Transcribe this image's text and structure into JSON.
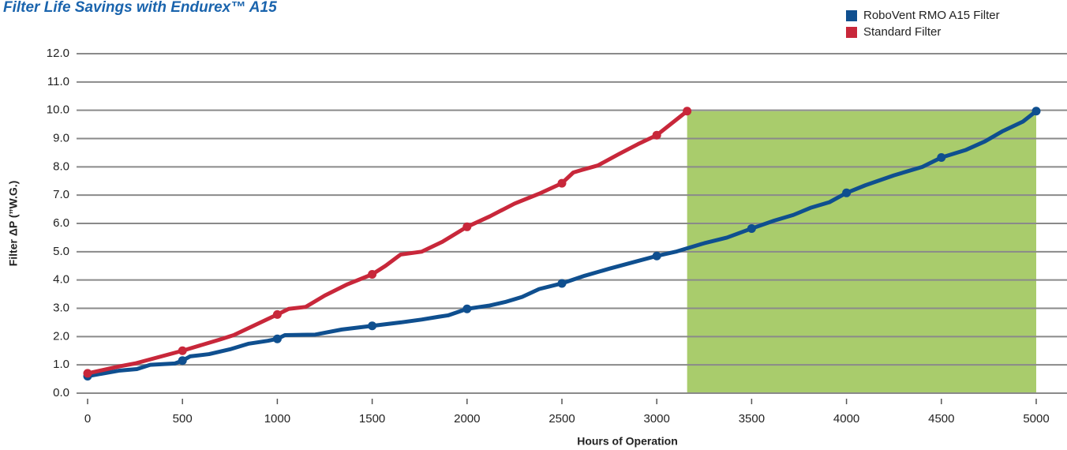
{
  "chart_data": {
    "type": "line",
    "title": "Filter Life Savings with Endurex™ A15",
    "x_label": "Hours of Operation",
    "y_label": "Filter ΔP (”W.G.)",
    "xlim": [
      0,
      5000
    ],
    "xticks": [
      0,
      500,
      1000,
      1500,
      2000,
      2500,
      3000,
      3500,
      4000,
      4500,
      5000
    ],
    "ylim": [
      0,
      12
    ],
    "yticks": [
      {
        "value": 0,
        "label": "0.0"
      },
      {
        "value": 1,
        "label": "1.0"
      },
      {
        "value": 2,
        "label": "2.0"
      },
      {
        "value": 3,
        "label": "3.0"
      },
      {
        "value": 4,
        "label": "4.0"
      },
      {
        "value": 5,
        "label": "5.0"
      },
      {
        "value": 6,
        "label": "6.0"
      },
      {
        "value": 7,
        "label": "7.0"
      },
      {
        "value": 8,
        "label": "8.0"
      },
      {
        "value": 9,
        "label": "9.0"
      },
      {
        "value": 10,
        "label": "10.0"
      },
      {
        "value": 11,
        "label": "11.0"
      },
      {
        "value": 12,
        "label": "12.0"
      }
    ],
    "grid": true,
    "legend": "top-right",
    "savings_color": "#a9cc6c",
    "series": [
      {
        "name": "RoboVent RMO A15 Filter",
        "color": "#0f4f8f",
        "x": [
          0,
          170,
          260,
          330,
          460,
          500,
          540,
          640,
          750,
          850,
          950,
          1000,
          1040,
          1200,
          1340,
          1500,
          1650,
          1760,
          1850,
          1900,
          2000,
          2120,
          2200,
          2290,
          2380,
          2500,
          2620,
          2750,
          2860,
          3000,
          3100,
          3250,
          3370,
          3500,
          3620,
          3720,
          3810,
          3910,
          4000,
          4100,
          4250,
          4400,
          4500,
          4630,
          4730,
          4820,
          4930,
          5000
        ],
        "values": [
          0.6,
          0.8,
          0.85,
          1.0,
          1.05,
          1.15,
          1.3,
          1.38,
          1.55,
          1.75,
          1.85,
          1.92,
          2.05,
          2.07,
          2.25,
          2.38,
          2.5,
          2.6,
          2.7,
          2.75,
          2.98,
          3.1,
          3.22,
          3.4,
          3.68,
          3.88,
          4.15,
          4.4,
          4.6,
          4.85,
          5.0,
          5.3,
          5.5,
          5.82,
          6.1,
          6.3,
          6.55,
          6.75,
          7.08,
          7.35,
          7.7,
          8.0,
          8.33,
          8.6,
          8.9,
          9.25,
          9.6,
          9.97
        ]
      },
      {
        "name": "Standard Filter",
        "color": "#c8273a",
        "x": [
          0,
          170,
          250,
          500,
          700,
          770,
          1000,
          1060,
          1150,
          1250,
          1370,
          1500,
          1570,
          1650,
          1760,
          1870,
          2000,
          2120,
          2250,
          2380,
          2500,
          2560,
          2600,
          2690,
          2800,
          2900,
          3000,
          3160
        ],
        "values": [
          0.7,
          0.95,
          1.05,
          1.5,
          1.9,
          2.05,
          2.78,
          2.98,
          3.05,
          3.45,
          3.85,
          4.2,
          4.5,
          4.9,
          5.0,
          5.35,
          5.88,
          6.25,
          6.7,
          7.05,
          7.42,
          7.8,
          7.88,
          8.05,
          8.45,
          8.8,
          9.12,
          9.97
        ]
      }
    ]
  }
}
